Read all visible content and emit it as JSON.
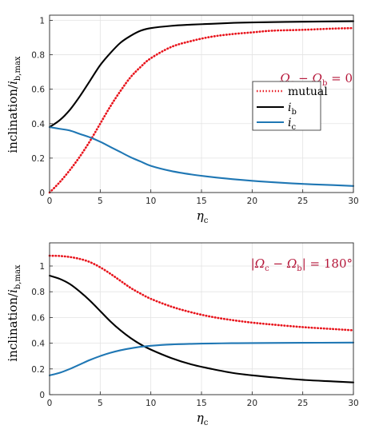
{
  "chart_data": [
    {
      "type": "line",
      "panel": "top",
      "xlabel": "η_c",
      "ylabel": "inclination / i_b,max",
      "xlim": [
        0,
        30
      ],
      "ylim": [
        0,
        1.03
      ],
      "xticks": [
        0,
        5,
        10,
        15,
        20,
        25,
        30
      ],
      "yticks": [
        0,
        0.2,
        0.4,
        0.6,
        0.8,
        1
      ],
      "grid": true,
      "annotation": "Ω_c − Ω_b = 0",
      "legend": {
        "placement": "right",
        "entries": [
          "mutual",
          "i_b",
          "i_c"
        ]
      },
      "series": [
        {
          "name": "mutual",
          "color": "#e8141c",
          "style": "dotted",
          "x": [
            0,
            1,
            2,
            3,
            4,
            5,
            6,
            7,
            8,
            9,
            10,
            12,
            14,
            16,
            18,
            20,
            22,
            25,
            28,
            30
          ],
          "y": [
            0.0,
            0.06,
            0.13,
            0.21,
            0.3,
            0.4,
            0.5,
            0.59,
            0.67,
            0.73,
            0.78,
            0.845,
            0.88,
            0.905,
            0.92,
            0.93,
            0.94,
            0.945,
            0.952,
            0.955
          ]
        },
        {
          "name": "i_b",
          "color": "#000000",
          "style": "solid",
          "x": [
            0,
            1,
            2,
            3,
            4,
            5,
            6,
            7,
            8,
            9,
            10,
            12,
            14,
            16,
            18,
            20,
            25,
            30
          ],
          "y": [
            0.38,
            0.42,
            0.48,
            0.56,
            0.65,
            0.74,
            0.81,
            0.87,
            0.91,
            0.94,
            0.955,
            0.968,
            0.975,
            0.98,
            0.985,
            0.988,
            0.992,
            0.995
          ]
        },
        {
          "name": "i_c",
          "color": "#1f77b4",
          "style": "solid",
          "x": [
            0,
            1,
            2,
            3,
            4,
            5,
            6,
            7,
            8,
            9,
            10,
            12,
            14,
            16,
            18,
            20,
            22,
            25,
            28,
            30
          ],
          "y": [
            0.38,
            0.37,
            0.36,
            0.34,
            0.32,
            0.295,
            0.265,
            0.235,
            0.205,
            0.18,
            0.155,
            0.125,
            0.105,
            0.09,
            0.078,
            0.068,
            0.06,
            0.05,
            0.043,
            0.038
          ]
        }
      ]
    },
    {
      "type": "line",
      "panel": "bottom",
      "xlabel": "η_c",
      "ylabel": "inclination / i_b,max",
      "xlim": [
        0,
        30
      ],
      "ylim": [
        0,
        1.18
      ],
      "xticks": [
        0,
        5,
        10,
        15,
        20,
        25,
        30
      ],
      "yticks": [
        0,
        0.2,
        0.4,
        0.6,
        0.8,
        1
      ],
      "grid": true,
      "annotation": "|Ω_c − Ω_b| = 180°",
      "series": [
        {
          "name": "mutual",
          "color": "#e8141c",
          "style": "dotted",
          "x": [
            0,
            1,
            2,
            3,
            4,
            5,
            6,
            7,
            8,
            9,
            10,
            12,
            14,
            16,
            18,
            20,
            22,
            25,
            28,
            30
          ],
          "y": [
            1.08,
            1.078,
            1.07,
            1.055,
            1.03,
            0.99,
            0.94,
            0.885,
            0.83,
            0.785,
            0.745,
            0.685,
            0.64,
            0.605,
            0.58,
            0.56,
            0.545,
            0.525,
            0.51,
            0.5
          ]
        },
        {
          "name": "i_b",
          "color": "#000000",
          "style": "solid",
          "x": [
            0,
            1,
            2,
            3,
            4,
            5,
            6,
            7,
            8,
            9,
            10,
            12,
            14,
            16,
            18,
            20,
            22,
            25,
            28,
            30
          ],
          "y": [
            0.925,
            0.9,
            0.86,
            0.8,
            0.73,
            0.65,
            0.57,
            0.5,
            0.44,
            0.39,
            0.35,
            0.285,
            0.235,
            0.2,
            0.17,
            0.15,
            0.135,
            0.115,
            0.103,
            0.095
          ]
        },
        {
          "name": "i_c",
          "color": "#1f77b4",
          "style": "solid",
          "x": [
            0,
            1,
            2,
            3,
            4,
            5,
            6,
            7,
            8,
            9,
            10,
            12,
            14,
            16,
            18,
            20,
            25,
            30
          ],
          "y": [
            0.15,
            0.17,
            0.2,
            0.235,
            0.27,
            0.3,
            0.325,
            0.345,
            0.36,
            0.372,
            0.38,
            0.39,
            0.395,
            0.398,
            0.4,
            0.401,
            0.403,
            0.405
          ]
        }
      ]
    }
  ]
}
